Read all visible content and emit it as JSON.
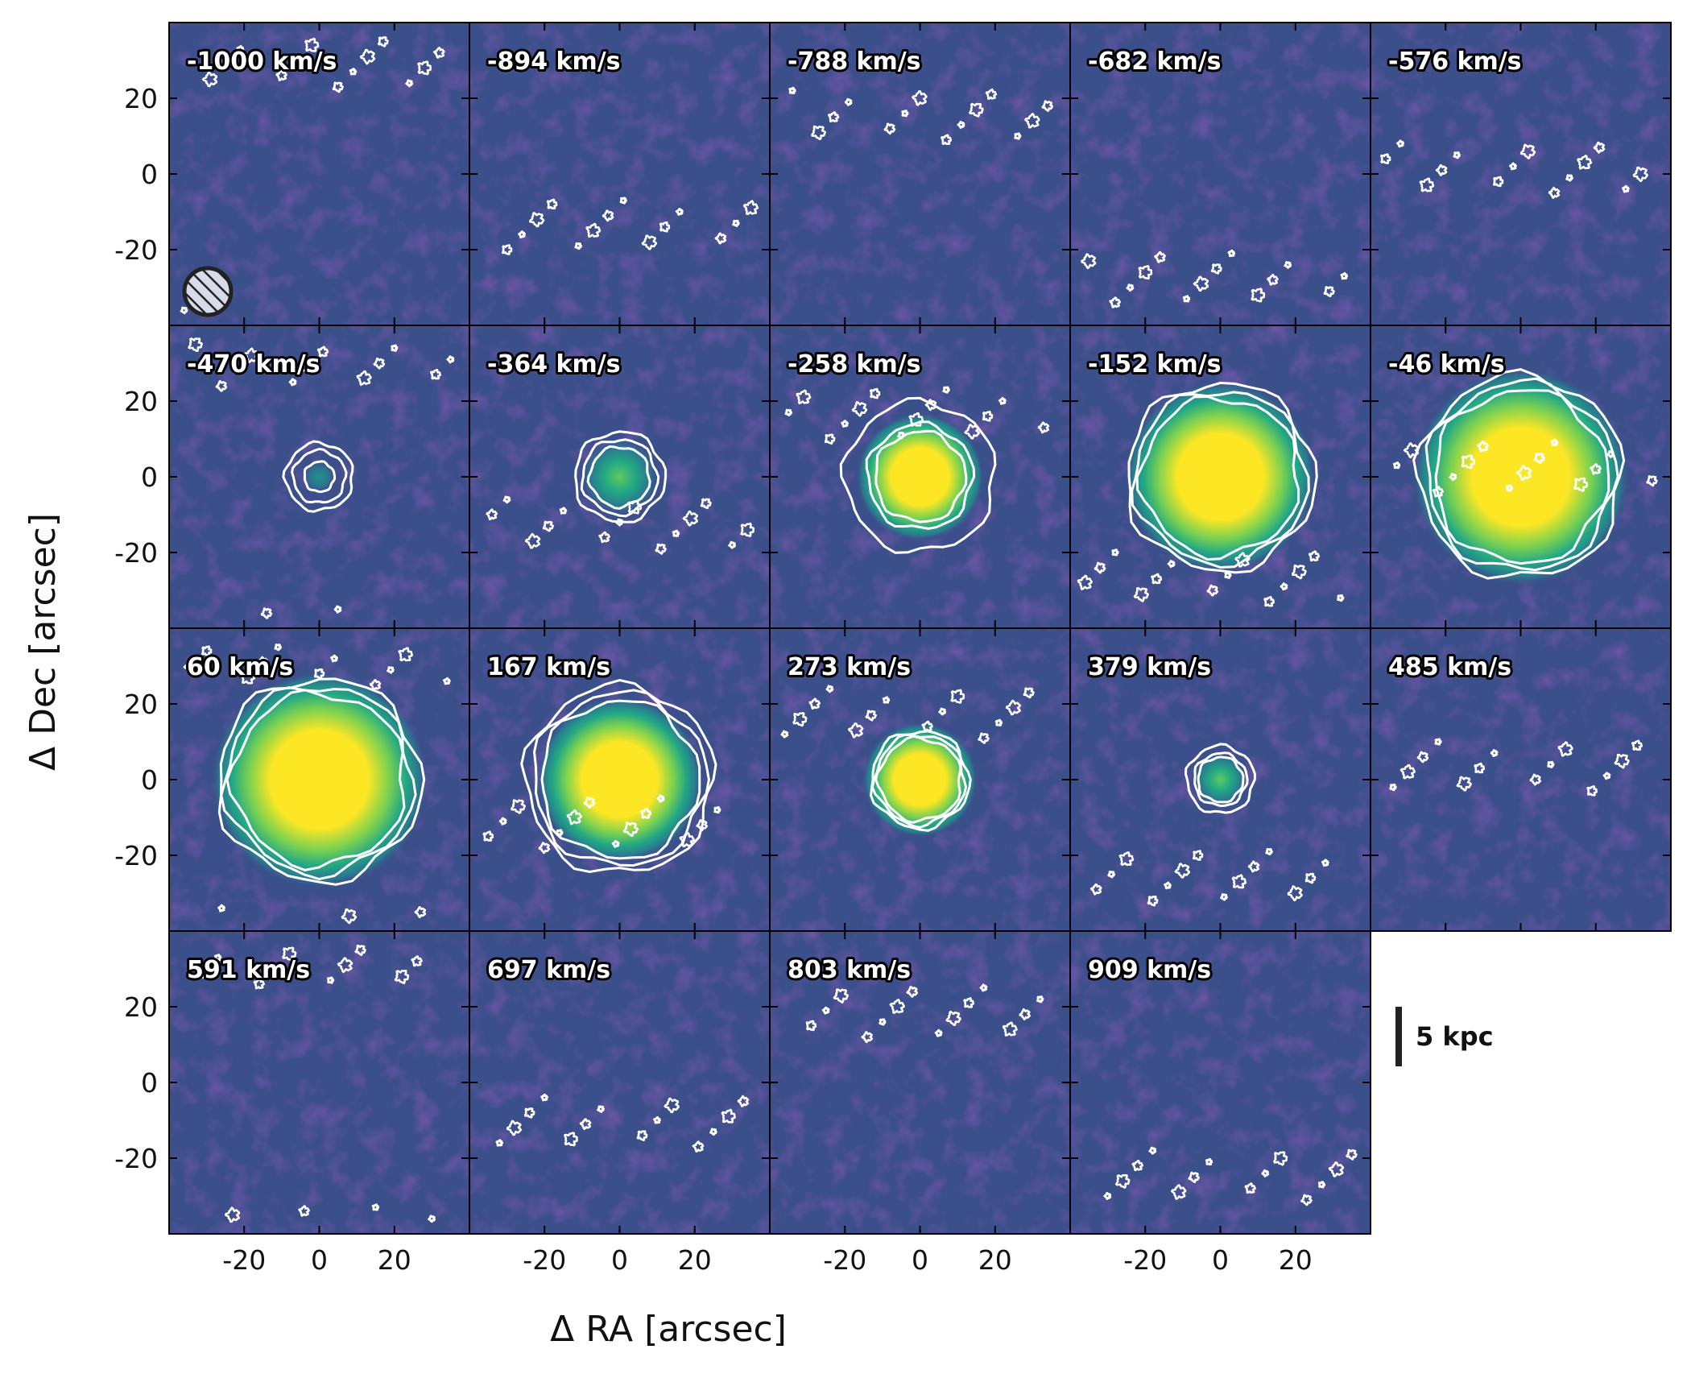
{
  "chart_data": {
    "type": "heatmap",
    "title": "",
    "xlabel": "Δ RA [arcsec]",
    "ylabel": "Δ Dec [arcsec]",
    "xlim": [
      -40,
      40
    ],
    "ylim": [
      -40,
      40
    ],
    "xticks": [
      -20,
      0,
      20
    ],
    "yticks": [
      -20,
      0,
      20
    ],
    "xtick_labels": [
      "-20",
      "0",
      "20"
    ],
    "ytick_labels": [
      "-20",
      "0",
      "20"
    ],
    "grid": false,
    "colormap": "viridis",
    "panels": [
      {
        "label": "-1000 km/s",
        "velocity": -1000,
        "peak": 0.05,
        "emission_radius": 0,
        "contour_radii": []
      },
      {
        "label": "-894 km/s",
        "velocity": -894,
        "peak": 0.05,
        "emission_radius": 0,
        "contour_radii": []
      },
      {
        "label": "-788 km/s",
        "velocity": -788,
        "peak": 0.05,
        "emission_radius": 0,
        "contour_radii": []
      },
      {
        "label": "-682 km/s",
        "velocity": -682,
        "peak": 0.05,
        "emission_radius": 0,
        "contour_radii": []
      },
      {
        "label": "-576 km/s",
        "velocity": -576,
        "peak": 0.05,
        "emission_radius": 0,
        "contour_radii": []
      },
      {
        "label": "-470 km/s",
        "velocity": -470,
        "peak": 0.3,
        "emission_radius": 3,
        "contour_radii": [
          4,
          7,
          9
        ]
      },
      {
        "label": "-364 km/s",
        "velocity": -364,
        "peak": 0.55,
        "emission_radius": 7,
        "contour_radii": [
          8,
          10,
          12
        ]
      },
      {
        "label": "-258 km/s",
        "velocity": -258,
        "peak": 0.95,
        "emission_radius": 10,
        "contour_radii": [
          12,
          14,
          20
        ]
      },
      {
        "label": "-152 km/s",
        "velocity": -152,
        "peak": 1.0,
        "emission_radius": 15,
        "contour_radii": [
          21,
          23,
          25
        ]
      },
      {
        "label": "-46 km/s",
        "velocity": -46,
        "peak": 1.0,
        "emission_radius": 17,
        "contour_radii": [
          23,
          25,
          27
        ]
      },
      {
        "label": "60 km/s",
        "velocity": 60,
        "peak": 1.0,
        "emission_radius": 17,
        "contour_radii": [
          23,
          25,
          27
        ]
      },
      {
        "label": "167 km/s",
        "velocity": 167,
        "peak": 1.0,
        "emission_radius": 13,
        "contour_radii": [
          21,
          23,
          25
        ]
      },
      {
        "label": "273 km/s",
        "velocity": 273,
        "peak": 0.95,
        "emission_radius": 9,
        "contour_radii": [
          11,
          12,
          13
        ]
      },
      {
        "label": "379 km/s",
        "velocity": 379,
        "peak": 0.55,
        "emission_radius": 5,
        "contour_radii": [
          6,
          7,
          9
        ]
      },
      {
        "label": "485 km/s",
        "velocity": 485,
        "peak": 0.06,
        "emission_radius": 0,
        "contour_radii": []
      },
      {
        "label": "591 km/s",
        "velocity": 591,
        "peak": 0.06,
        "emission_radius": 0,
        "contour_radii": []
      },
      {
        "label": "697 km/s",
        "velocity": 697,
        "peak": 0.05,
        "emission_radius": 0,
        "contour_radii": []
      },
      {
        "label": "803 km/s",
        "velocity": 803,
        "peak": 0.04,
        "emission_radius": 0,
        "contour_radii": []
      },
      {
        "label": "909 km/s",
        "velocity": 909,
        "peak": 0.04,
        "emission_radius": 0,
        "contour_radii": []
      }
    ],
    "beam": {
      "shape": "hatched-circle",
      "panel": 0
    },
    "scale_bar": {
      "label": "5 kpc"
    }
  },
  "colors": {
    "background": "#3b4f8a",
    "contour": "#ffffff",
    "peak": "#fde725",
    "frame": "#000000"
  }
}
